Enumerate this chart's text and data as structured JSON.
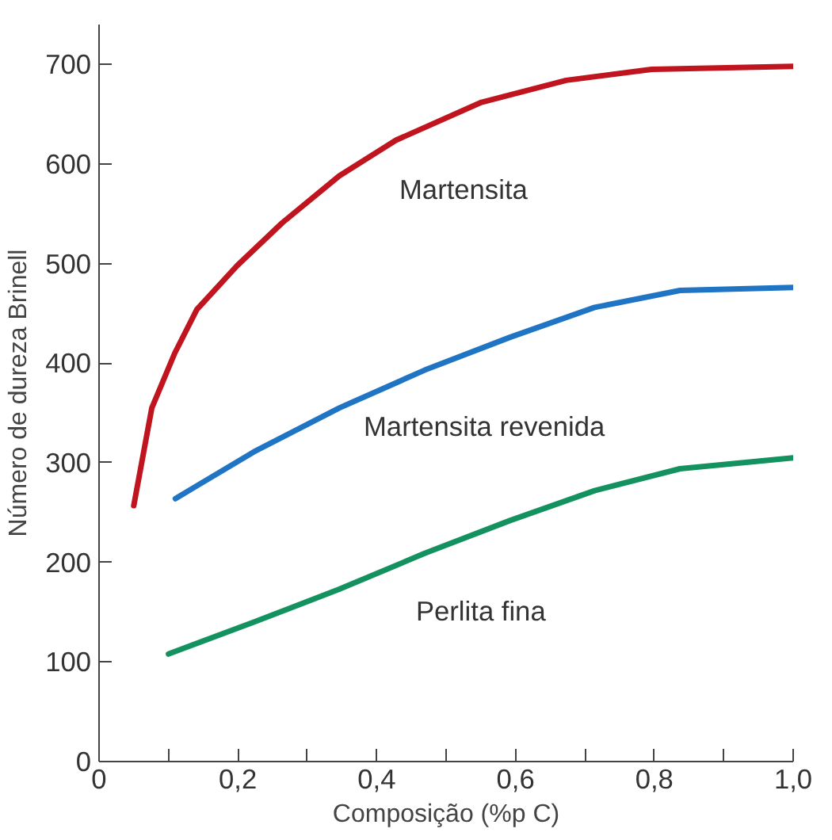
{
  "chart_data": {
    "type": "line",
    "xlabel": "Composição (%p C)",
    "ylabel": "Número de dureza Brinell",
    "xlim": [
      0,
      1.0
    ],
    "ylim": [
      0,
      740
    ],
    "xticks": [
      0,
      {
        "value": 0.1,
        "label": null
      },
      {
        "value": 0.2,
        "label": "0,2"
      },
      {
        "value": 0.3,
        "label": null
      },
      {
        "value": 0.4,
        "label": "0,4"
      },
      {
        "value": 0.5,
        "label": null
      },
      {
        "value": 0.6,
        "label": "0,6"
      },
      {
        "value": 0.7,
        "label": null
      },
      {
        "value": 0.8,
        "label": "0,8"
      },
      {
        "value": 0.9,
        "label": null
      },
      {
        "value": 1.0,
        "label": "1,0"
      }
    ],
    "yticks": [
      0,
      100,
      200,
      300,
      400,
      500,
      600,
      700
    ],
    "grid": false,
    "legend": false,
    "marker": "none",
    "line_style": "solid",
    "series": [
      {
        "name": "Martensita",
        "color": "#c0141e",
        "x": [
          0.05,
          0.076,
          0.109,
          0.141,
          0.199,
          0.264,
          0.346,
          0.428,
          0.551,
          0.673,
          0.796,
          1.0
        ],
        "values": [
          257,
          355,
          410,
          454,
          498,
          541,
          588,
          624,
          662,
          684,
          695,
          698
        ]
      },
      {
        "name": "Martensita revenida",
        "color": "#1f74c4",
        "x": [
          0.11,
          0.223,
          0.346,
          0.469,
          0.592,
          0.714,
          0.837,
          1.0
        ],
        "values": [
          264,
          311,
          355,
          393,
          426,
          456,
          473,
          476
        ]
      },
      {
        "name": "Perlita fina",
        "color": "#13925f",
        "x": [
          0.1,
          0.223,
          0.346,
          0.469,
          0.592,
          0.714,
          0.837,
          1.0
        ],
        "values": [
          108,
          140,
          173,
          209,
          242,
          272,
          294,
          305
        ]
      }
    ]
  }
}
